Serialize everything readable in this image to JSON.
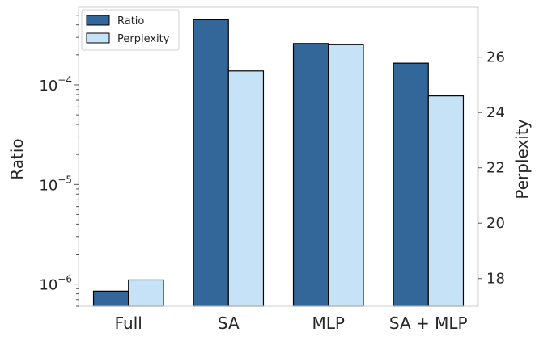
{
  "chart_data": {
    "type": "bar",
    "categories": [
      "Full",
      "SA",
      "MLP",
      "SA + MLP"
    ],
    "series": [
      {
        "name": "Ratio",
        "axis": "left",
        "values": [
          8.5e-07,
          0.00045,
          0.00026,
          0.000165
        ],
        "color": "#336699"
      },
      {
        "name": "Perplexity",
        "axis": "right",
        "values": [
          17.95,
          25.5,
          26.45,
          24.6
        ],
        "color": "#c5e2f7"
      }
    ],
    "y_left": {
      "label": "Ratio",
      "scale": "log",
      "range": [
        6e-07,
        0.0006
      ],
      "ticks": [
        {
          "mantissa": "10",
          "exponent": "−4",
          "value": 0.0001
        },
        {
          "mantissa": "10",
          "exponent": "−5",
          "value": 1e-05
        },
        {
          "mantissa": "10",
          "exponent": "−6",
          "value": 1e-06
        }
      ]
    },
    "y_right": {
      "label": "Perplexity",
      "scale": "linear",
      "range": [
        17,
        27.8
      ],
      "ticks": [
        "18",
        "20",
        "22",
        "24",
        "26"
      ]
    },
    "legend": {
      "placement": "top-left",
      "entries": [
        "Ratio",
        "Perplexity"
      ]
    },
    "grid": false,
    "edge_color": "#000000"
  }
}
